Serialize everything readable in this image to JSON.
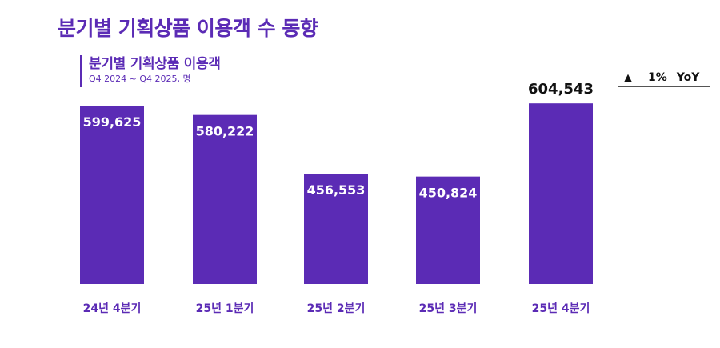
{
  "page": {
    "title": "분기별 기획상품 이용객 수 동향"
  },
  "chart_data": {
    "type": "bar",
    "title": "분기별 기획상품 이용객",
    "subtitle": "Q4 2024 ~ Q4 2025, 명",
    "categories": [
      "24년 4분기",
      "25년 1분기",
      "25년 2분기",
      "25년 3분기",
      "25년 4분기"
    ],
    "values": [
      599625,
      580222,
      456553,
      450824,
      604543
    ],
    "value_labels": [
      "599,625",
      "580,222",
      "456,553",
      "450,824",
      "604,543"
    ],
    "ylim": [
      0,
      620000
    ],
    "xlabel": "",
    "ylabel": "",
    "grid": false,
    "bar_color": "#5b2bb5",
    "highlight_index": 4
  },
  "yoy": {
    "arrow": "▲",
    "value": "1%",
    "label": "YoY"
  }
}
